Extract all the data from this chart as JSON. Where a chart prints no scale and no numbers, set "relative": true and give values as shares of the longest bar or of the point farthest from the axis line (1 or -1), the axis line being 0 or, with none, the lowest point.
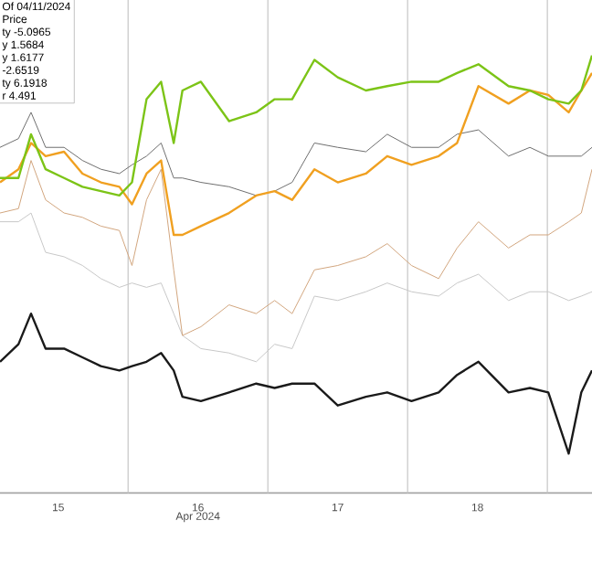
{
  "chart_data": {
    "type": "line",
    "relative": true,
    "xlabel": "Apr 2024",
    "grid": "x",
    "xlim": [
      "2024-04-15T02:00",
      "2024-04-19T07:40"
    ],
    "xticks": [
      {
        "value": "2024-04-15T12:00",
        "label": "15"
      },
      {
        "value": "2024-04-16T00:00",
        "label": null
      },
      {
        "value": "2024-04-16T12:00",
        "label": "16"
      },
      {
        "value": "2024-04-17T00:00",
        "label": null
      },
      {
        "value": "2024-04-17T12:00",
        "label": "17"
      },
      {
        "value": "2024-04-18T00:00",
        "label": null
      },
      {
        "value": "2024-04-18T12:00",
        "label": "18"
      },
      {
        "value": "2024-04-19T00:00",
        "label": null
      }
    ],
    "x": [
      "2024-04-15T02:00",
      "2024-04-15T05:10",
      "2024-04-15T07:20",
      "2024-04-15T09:50",
      "2024-04-15T13:00",
      "2024-04-15T16:10",
      "2024-04-15T19:20",
      "2024-04-15T22:30",
      "2024-04-16T00:40",
      "2024-04-16T03:10",
      "2024-04-16T05:40",
      "2024-04-16T07:50",
      "2024-04-16T09:20",
      "2024-04-16T12:30",
      "2024-04-16T17:20",
      "2024-04-16T22:00",
      "2024-04-17T01:10",
      "2024-04-17T04:10",
      "2024-04-17T08:00",
      "2024-04-17T12:00",
      "2024-04-17T16:50",
      "2024-04-17T20:30",
      "2024-04-18T00:40",
      "2024-04-18T05:20",
      "2024-04-18T08:30",
      "2024-04-18T12:10",
      "2024-04-18T17:20",
      "2024-04-18T21:00",
      "2024-04-19T00:10",
      "2024-04-19T03:40",
      "2024-04-19T05:50",
      "2024-04-19T07:40"
    ],
    "series": [
      {
        "color": "#c8c8c8",
        "values": [
          0.62,
          0.62,
          0.64,
          0.55,
          0.54,
          0.52,
          0.49,
          0.47,
          0.48,
          0.47,
          0.48,
          0.41,
          0.36,
          0.33,
          0.32,
          0.3,
          0.34,
          0.33,
          0.45,
          0.44,
          0.46,
          0.48,
          0.46,
          0.45,
          0.48,
          0.5,
          0.44,
          0.46,
          0.46,
          0.44,
          0.45,
          0.46
        ]
      },
      {
        "color": "#d2a67e",
        "values": [
          0.64,
          0.65,
          0.76,
          0.67,
          0.64,
          0.63,
          0.61,
          0.6,
          0.52,
          0.67,
          0.74,
          0.51,
          0.36,
          0.38,
          0.43,
          0.41,
          0.44,
          0.41,
          0.51,
          0.52,
          0.54,
          0.57,
          0.52,
          0.49,
          0.56,
          0.62,
          0.56,
          0.59,
          0.59,
          0.62,
          0.64,
          0.74
        ]
      },
      {
        "color": "#6e6e6e",
        "values": [
          0.79,
          0.81,
          0.87,
          0.79,
          0.79,
          0.76,
          0.74,
          0.73,
          0.75,
          0.77,
          0.8,
          0.72,
          0.72,
          0.71,
          0.7,
          0.68,
          0.69,
          0.71,
          0.8,
          0.79,
          0.78,
          0.82,
          0.79,
          0.79,
          0.82,
          0.83,
          0.77,
          0.79,
          0.77,
          0.77,
          0.77,
          0.79
        ]
      },
      {
        "color": "#1a1a1a",
        "values": [
          0.3,
          0.34,
          0.41,
          0.33,
          0.33,
          0.31,
          0.29,
          0.28,
          0.29,
          0.3,
          0.32,
          0.28,
          0.22,
          0.21,
          0.23,
          0.25,
          0.24,
          0.25,
          0.25,
          0.2,
          0.22,
          0.23,
          0.21,
          0.23,
          0.27,
          0.3,
          0.23,
          0.24,
          0.23,
          0.09,
          0.23,
          0.28
        ]
      },
      {
        "color": "#f0a020",
        "values": [
          0.71,
          0.74,
          0.8,
          0.77,
          0.78,
          0.73,
          0.71,
          0.7,
          0.66,
          0.73,
          0.76,
          0.59,
          0.59,
          0.61,
          0.64,
          0.68,
          0.69,
          0.67,
          0.74,
          0.71,
          0.73,
          0.77,
          0.75,
          0.77,
          0.8,
          0.93,
          0.89,
          0.92,
          0.91,
          0.87,
          0.92,
          0.96
        ]
      },
      {
        "color": "#7cc417",
        "values": [
          0.72,
          0.72,
          0.82,
          0.74,
          0.72,
          0.7,
          0.69,
          0.68,
          0.71,
          0.9,
          0.94,
          0.8,
          0.92,
          0.94,
          0.85,
          0.87,
          0.9,
          0.9,
          0.99,
          0.95,
          0.92,
          0.93,
          0.94,
          0.94,
          0.96,
          0.98,
          0.93,
          0.92,
          0.9,
          0.89,
          0.92,
          1.0
        ]
      }
    ],
    "annotations": [
      "Of 04/11/2024",
      "Price",
      "ty -5.0965",
      "y 1.5684",
      "y 1.6177",
      "-2.6519",
      "ty 6.1918",
      "r 4.491"
    ]
  }
}
